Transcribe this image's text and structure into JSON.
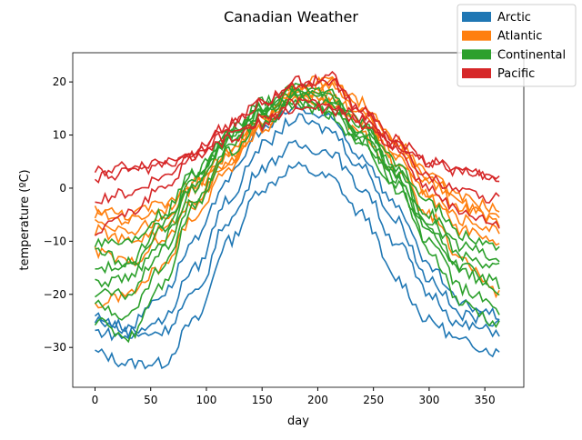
{
  "chart_data": {
    "type": "line",
    "title": "Canadian Weather",
    "xlabel": "day",
    "ylabel": "temperature (ºC)",
    "xlim": [
      -20,
      385
    ],
    "ylim": [
      -37.5,
      25.5
    ],
    "xticks": [
      0,
      50,
      100,
      150,
      200,
      250,
      300,
      350
    ],
    "yticks": [
      -30,
      -20,
      -10,
      0,
      10,
      20
    ],
    "grid": false,
    "legend_placement": "top-right",
    "legend": [
      {
        "name": "Arctic",
        "color": "#1f77b4"
      },
      {
        "name": "Atlantic",
        "color": "#ff7f0e"
      },
      {
        "name": "Continental",
        "color": "#2ca02c"
      },
      {
        "name": "Pacific",
        "color": "#d62728"
      }
    ],
    "x": [
      0,
      30,
      60,
      90,
      120,
      150,
      180,
      210,
      240,
      270,
      300,
      330,
      365
    ],
    "series": [
      {
        "group": "Arctic",
        "values": [
          -31,
          -33,
          -33,
          -25,
          -10,
          0,
          4,
          2,
          -5,
          -17,
          -25,
          -29,
          -31
        ]
      },
      {
        "group": "Arctic",
        "values": [
          -27,
          -28,
          -27,
          -20,
          -6,
          4,
          8,
          7,
          0,
          -10,
          -20,
          -26,
          -27
        ]
      },
      {
        "group": "Arctic",
        "values": [
          -24,
          -27,
          -25,
          -15,
          -2,
          8,
          13,
          11,
          4,
          -6,
          -17,
          -24,
          -25
        ]
      },
      {
        "group": "Arctic",
        "values": [
          -25,
          -26,
          -20,
          -10,
          2,
          11,
          15,
          13,
          6,
          -3,
          -15,
          -22,
          -24
        ]
      },
      {
        "group": "Atlantic",
        "values": [
          -5,
          -6,
          -4,
          1,
          7,
          13,
          18,
          19,
          14,
          7,
          1,
          -4,
          -6
        ]
      },
      {
        "group": "Atlantic",
        "values": [
          -8,
          -10,
          -8,
          -2,
          5,
          12,
          18,
          18,
          13,
          6,
          -1,
          -6,
          -8
        ]
      },
      {
        "group": "Atlantic",
        "values": [
          -12,
          -14,
          -10,
          -3,
          5,
          12,
          17,
          17,
          12,
          5,
          -2,
          -8,
          -11
        ]
      },
      {
        "group": "Atlantic",
        "values": [
          -4,
          -5,
          -3,
          1,
          7,
          13,
          19,
          20,
          15,
          9,
          3,
          -2,
          -4
        ]
      },
      {
        "group": "Atlantic",
        "values": [
          -22,
          -20,
          -15,
          -5,
          4,
          11,
          17,
          16,
          10,
          3,
          -5,
          -14,
          -20
        ]
      },
      {
        "group": "Atlantic",
        "values": [
          -6,
          -8,
          -6,
          0,
          6,
          13,
          19,
          21,
          16,
          9,
          2,
          -3,
          -7
        ]
      },
      {
        "group": "Continental",
        "values": [
          -15,
          -15,
          -8,
          3,
          11,
          16,
          19,
          18,
          12,
          4,
          -6,
          -13,
          -15
        ]
      },
      {
        "group": "Continental",
        "values": [
          -20,
          -20,
          -12,
          0,
          10,
          15,
          19,
          17,
          11,
          3,
          -8,
          -16,
          -20
        ]
      },
      {
        "group": "Continental",
        "values": [
          -25,
          -28,
          -18,
          -3,
          8,
          14,
          18,
          16,
          10,
          1,
          -12,
          -22,
          -26
        ]
      },
      {
        "group": "Continental",
        "values": [
          -10,
          -10,
          -5,
          3,
          10,
          15,
          18,
          17,
          12,
          5,
          -3,
          -9,
          -11
        ]
      },
      {
        "group": "Continental",
        "values": [
          -18,
          -17,
          -10,
          1,
          9,
          14,
          17,
          15,
          9,
          2,
          -8,
          -15,
          -18
        ]
      },
      {
        "group": "Continental",
        "values": [
          -12,
          -14,
          -7,
          2,
          9,
          13,
          16,
          15,
          10,
          3,
          -5,
          -11,
          -14
        ]
      },
      {
        "group": "Continental",
        "values": [
          -22,
          -24,
          -15,
          -2,
          7,
          12,
          16,
          14,
          8,
          0,
          -10,
          -19,
          -23
        ]
      },
      {
        "group": "Pacific",
        "values": [
          3,
          4,
          5,
          7,
          10,
          13,
          16,
          16,
          13,
          9,
          5,
          3,
          2
        ]
      },
      {
        "group": "Pacific",
        "values": [
          2,
          3,
          4,
          6,
          9,
          12,
          15,
          15,
          12,
          8,
          5,
          3,
          2
        ]
      },
      {
        "group": "Pacific",
        "values": [
          -2,
          -1,
          2,
          7,
          12,
          16,
          20,
          20,
          15,
          8,
          2,
          -1,
          -2
        ]
      },
      {
        "group": "Pacific",
        "values": [
          -8,
          -5,
          0,
          6,
          12,
          16,
          19,
          21,
          14,
          7,
          0,
          -5,
          -7
        ]
      }
    ]
  }
}
